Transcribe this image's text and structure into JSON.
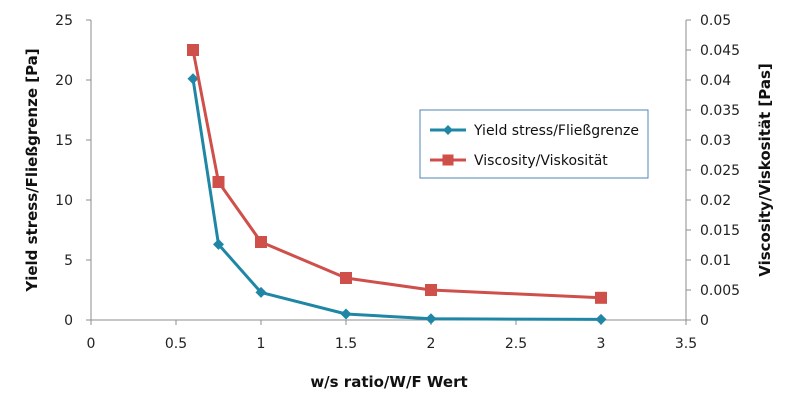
{
  "chart_data": {
    "type": "line",
    "xlabel": "w/s ratio/W/F Wert",
    "ylabel_left": "Yield stress/Fließgrenze [Pa]",
    "ylabel_right": "Viscosity/Viskosität [Pas]",
    "xlim": [
      0,
      3.5
    ],
    "ylim_left": [
      0,
      25
    ],
    "ylim_right": [
      0,
      0.05
    ],
    "x_ticks": [
      0,
      0.5,
      1,
      1.5,
      2,
      2.5,
      3,
      3.5
    ],
    "x_tick_labels": [
      "0",
      "0.5",
      "1",
      "1.5",
      "2",
      "2.5",
      "3",
      "3.5"
    ],
    "y_left_ticks": [
      0,
      5,
      10,
      15,
      20,
      25
    ],
    "y_left_tick_labels": [
      "0",
      "5",
      "10",
      "15",
      "20",
      "25"
    ],
    "y_right_ticks": [
      0,
      0.005,
      0.01,
      0.015,
      0.02,
      0.025,
      0.03,
      0.035,
      0.04,
      0.045,
      0.05
    ],
    "y_right_tick_labels": [
      "0",
      "0.005",
      "0.01",
      "0.015",
      "0.02",
      "0.025",
      "0.03",
      "0.035",
      "0.04",
      "0.045",
      "0.05"
    ],
    "grid": false,
    "legend_position": "right",
    "series": [
      {
        "name": "Yield stress/Fließgrenze",
        "axis": "left",
        "marker": "diamond",
        "color": "#1f87a5",
        "x": [
          0.6,
          0.75,
          1,
          1.5,
          2,
          3
        ],
        "y": [
          20.1,
          6.3,
          2.3,
          0.5,
          0.1,
          0.05
        ]
      },
      {
        "name": "Viscosity/Viskosität",
        "axis": "right",
        "marker": "square",
        "color": "#cf4f4b",
        "x": [
          0.6,
          0.75,
          1,
          1.5,
          2,
          3
        ],
        "y": [
          0.045,
          0.023,
          0.013,
          0.007,
          0.005,
          0.0037
        ]
      }
    ]
  }
}
